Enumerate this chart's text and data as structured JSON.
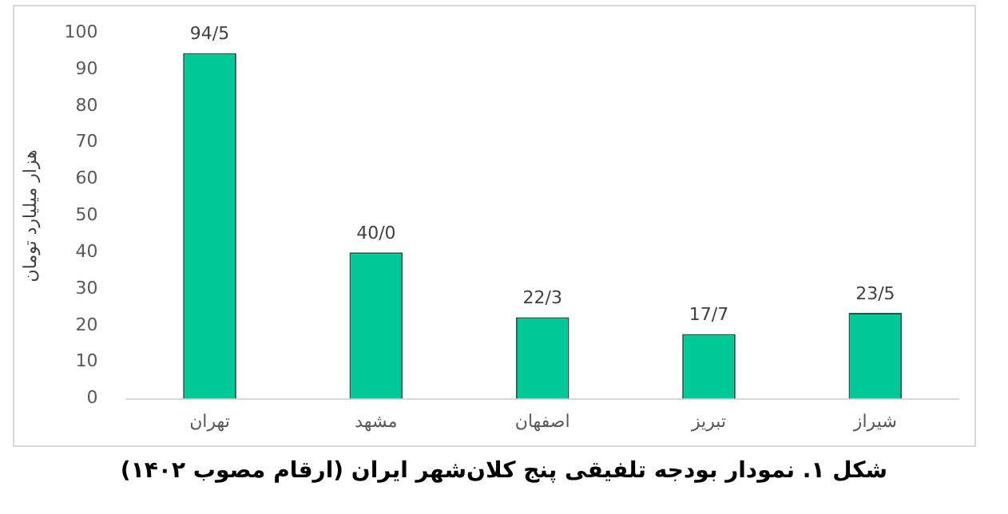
{
  "chart_data": {
    "type": "bar",
    "title": "شکل ۱. نمودار بودجه تلفیقی پنج کلان‌شهر ایران (ارقام مصوب ۱۴۰۲)",
    "ylabel": "هزار میلیارد تومان",
    "categories": [
      "تهران",
      "مشهد",
      "اصفهان",
      "تبریز",
      "شیراز"
    ],
    "values": [
      94.5,
      40.0,
      22.3,
      17.7,
      23.5
    ],
    "value_labels": [
      "94/5",
      "40/0",
      "22/3",
      "17/7",
      "23/5"
    ],
    "color": "#00c896",
    "ylim": [
      0,
      100
    ],
    "yticks": [
      0,
      10,
      20,
      30,
      40,
      50,
      60,
      70,
      80,
      90,
      100
    ],
    "grid": false
  }
}
